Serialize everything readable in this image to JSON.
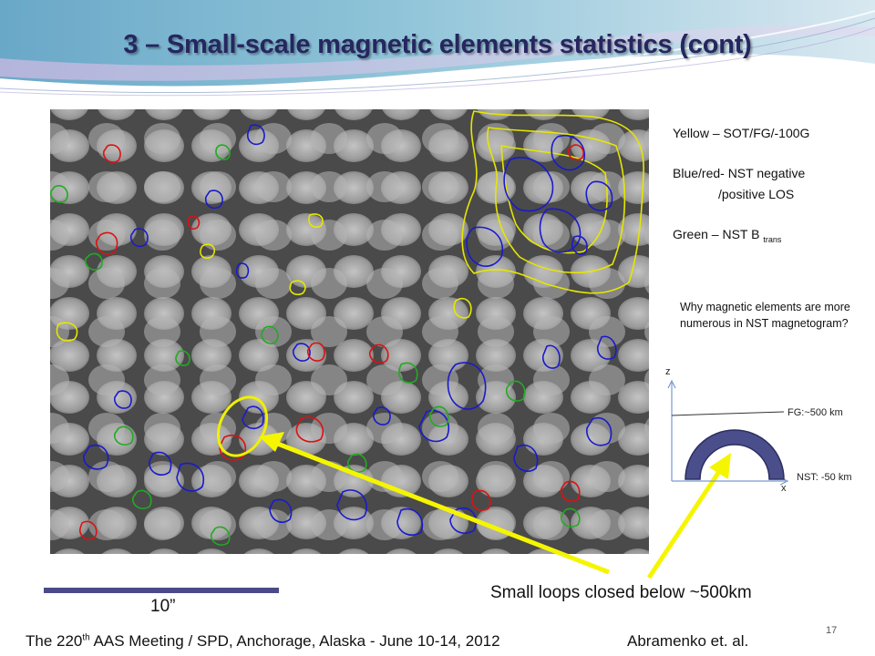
{
  "title": "3 – Small-scale magnetic elements statistics (cont)",
  "legend": {
    "yellow": "Yellow – SOT/FG/-100G",
    "blue_red_1": "Blue/red- NST negative",
    "blue_red_2": "/positive LOS",
    "green": "Green – NST B",
    "green_sub": "trans"
  },
  "question": "Why magnetic elements are more numerous in NST magnetogram?",
  "diagram": {
    "z_label": "z",
    "x_label": "x",
    "fg_label": "FG:~500 km",
    "nst_label": "NST: -50 km"
  },
  "caption": "Small loops closed below ~500km",
  "scale_label": "10”",
  "footer": {
    "meeting_pre": "The 220",
    "meeting_sup": "th",
    "meeting_post": " AAS Meeting / SPD, Anchorage, Alaska  -  June 10-14, 2012",
    "author": "Abramenko et. al.",
    "page_number": "17"
  },
  "colors": {
    "title": "#262660",
    "contour_yellow": "#e6e600",
    "contour_blue": "#1a1acc",
    "contour_red": "#dd1111",
    "contour_green": "#22aa22",
    "arrow": "#f5f500",
    "scale_bar": "#4a4a8a",
    "loop_fill": "#4a4e8a"
  }
}
